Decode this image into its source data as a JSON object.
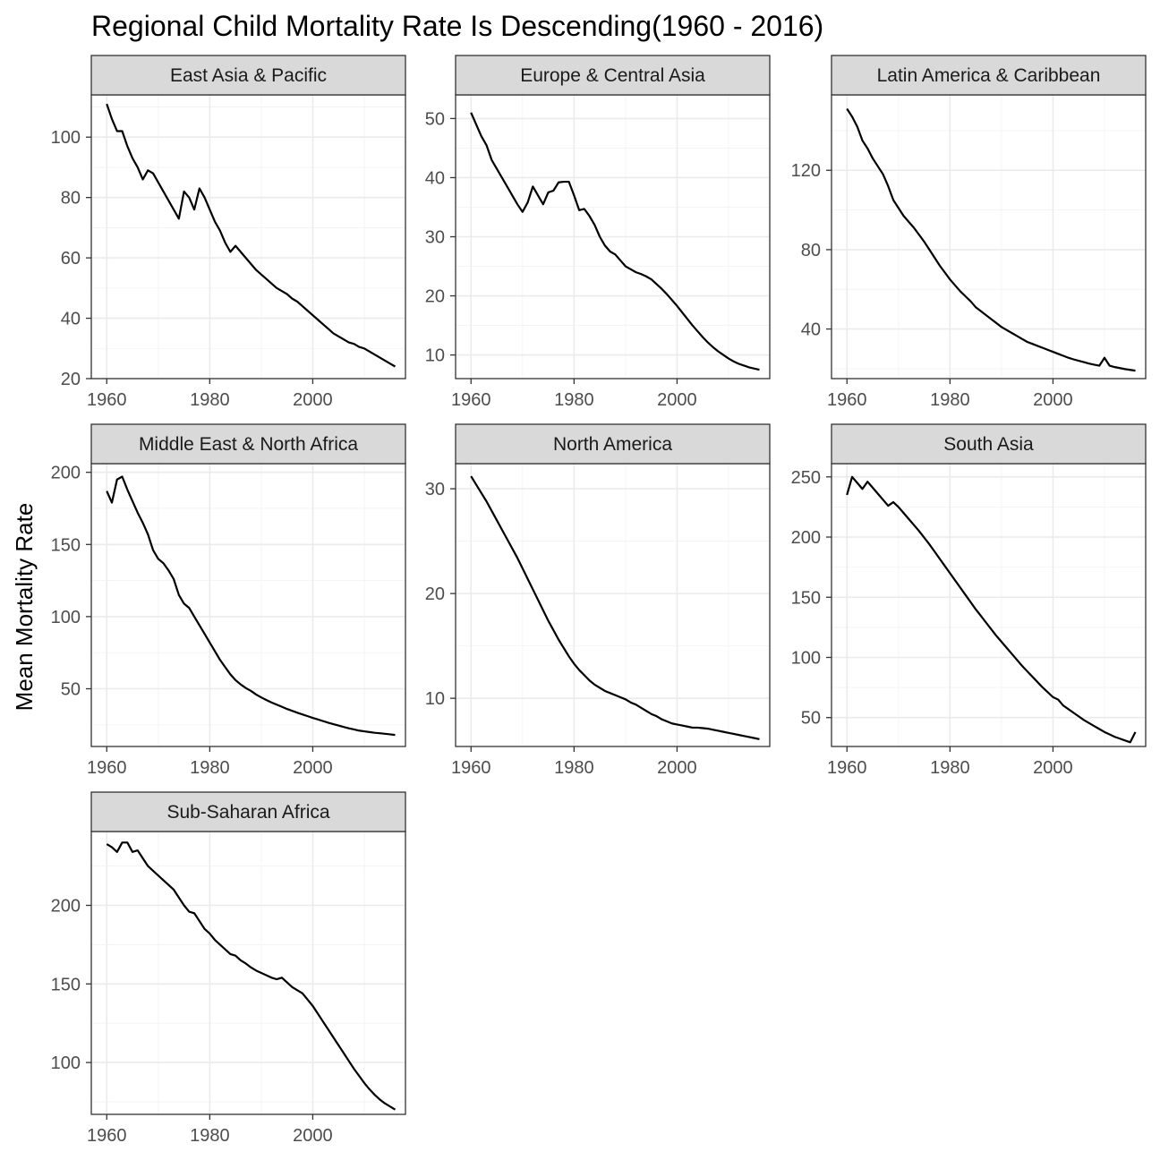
{
  "chart_data": {
    "type": "line",
    "title": "Regional Child Mortality Rate Is Descending(1960 - 2016)",
    "ylabel": "Mean Mortality Rate",
    "xlabel": "",
    "grid": true,
    "facets": [
      {
        "name": "East Asia & Pacific",
        "xlim": [
          1957,
          2018
        ],
        "ylim": [
          20,
          114
        ],
        "xticks": [
          1960,
          1980,
          2000
        ],
        "yticks": [
          20,
          40,
          60,
          80,
          100
        ],
        "x": [
          1960,
          1961,
          1962,
          1963,
          1964,
          1965,
          1966,
          1967,
          1968,
          1969,
          1970,
          1971,
          1972,
          1973,
          1974,
          1975,
          1976,
          1977,
          1978,
          1979,
          1980,
          1981,
          1982,
          1983,
          1984,
          1985,
          1986,
          1987,
          1988,
          1989,
          1990,
          1991,
          1992,
          1993,
          1994,
          1995,
          1996,
          1997,
          1998,
          1999,
          2000,
          2001,
          2002,
          2003,
          2004,
          2005,
          2006,
          2007,
          2008,
          2009,
          2010,
          2011,
          2012,
          2013,
          2014,
          2015,
          2016
        ],
        "y": [
          111,
          106,
          102,
          102,
          97,
          93,
          90,
          86,
          89,
          88,
          85,
          82,
          79,
          76,
          73,
          82,
          80,
          76,
          83,
          80,
          76,
          72,
          69,
          65,
          62,
          64,
          62,
          60,
          58,
          56,
          54.5,
          53,
          51.5,
          50,
          49,
          48,
          46.5,
          45.5,
          44,
          42.5,
          41,
          39.5,
          38,
          36.5,
          35,
          34,
          33,
          32,
          31.5,
          30.5,
          30,
          29,
          28,
          27,
          26,
          25,
          24
        ]
      },
      {
        "name": "Europe & Central Asia",
        "xlim": [
          1957,
          2018
        ],
        "ylim": [
          6,
          54
        ],
        "xticks": [
          1960,
          1980,
          2000
        ],
        "yticks": [
          10,
          20,
          30,
          40,
          50
        ],
        "x": [
          1960,
          1961,
          1962,
          1963,
          1964,
          1965,
          1966,
          1967,
          1968,
          1969,
          1970,
          1971,
          1972,
          1973,
          1974,
          1975,
          1976,
          1977,
          1978,
          1979,
          1980,
          1981,
          1982,
          1983,
          1984,
          1985,
          1986,
          1987,
          1988,
          1989,
          1990,
          1991,
          1992,
          1993,
          1994,
          1995,
          1996,
          1997,
          1998,
          1999,
          2000,
          2001,
          2002,
          2003,
          2004,
          2005,
          2006,
          2007,
          2008,
          2009,
          2010,
          2011,
          2012,
          2013,
          2014,
          2015,
          2016
        ],
        "y": [
          51,
          49,
          47,
          45.5,
          43,
          41.5,
          40,
          38.5,
          37,
          35.5,
          34.2,
          35.8,
          38.5,
          37,
          35.5,
          37.5,
          37.8,
          39.2,
          39.3,
          39.3,
          37,
          34.5,
          34.7,
          33.5,
          32,
          30,
          28.5,
          27.5,
          27,
          26,
          25,
          24.5,
          24,
          23.7,
          23.3,
          22.8,
          22,
          21.2,
          20.3,
          19.3,
          18.3,
          17.2,
          16.1,
          15,
          14,
          13,
          12.1,
          11.3,
          10.6,
          10,
          9.4,
          8.9,
          8.5,
          8.2,
          7.9,
          7.7,
          7.5
        ]
      },
      {
        "name": "Latin America & Caribbean",
        "xlim": [
          1957,
          2018
        ],
        "ylim": [
          15,
          158
        ],
        "xticks": [
          1960,
          1980,
          2000
        ],
        "yticks": [
          40,
          80,
          120
        ],
        "x": [
          1960,
          1961,
          1962,
          1963,
          1964,
          1965,
          1966,
          1967,
          1968,
          1969,
          1970,
          1971,
          1972,
          1973,
          1974,
          1975,
          1976,
          1977,
          1978,
          1979,
          1980,
          1981,
          1982,
          1983,
          1984,
          1985,
          1986,
          1987,
          1988,
          1989,
          1990,
          1991,
          1992,
          1993,
          1994,
          1995,
          1996,
          1997,
          1998,
          1999,
          2000,
          2001,
          2002,
          2003,
          2004,
          2005,
          2006,
          2007,
          2008,
          2009,
          2010,
          2011,
          2012,
          2013,
          2014,
          2015,
          2016
        ],
        "y": [
          151,
          147,
          142,
          135,
          131,
          126,
          122,
          118,
          112,
          105,
          101,
          97,
          94,
          91,
          87.5,
          84,
          80,
          76,
          72,
          68.5,
          65,
          62,
          59,
          56.5,
          54,
          51,
          49,
          47,
          45,
          43,
          41,
          39.5,
          38,
          36.5,
          35,
          33.5,
          32.5,
          31.5,
          30.5,
          29.5,
          28.5,
          27.5,
          26.5,
          25.5,
          24.7,
          24,
          23.3,
          22.6,
          22,
          21.5,
          25.5,
          21.5,
          20.8,
          20.3,
          19.8,
          19.4,
          19
        ]
      },
      {
        "name": "Middle East & North Africa",
        "xlim": [
          1957,
          2018
        ],
        "ylim": [
          10,
          206
        ],
        "xticks": [
          1960,
          1980,
          2000
        ],
        "yticks": [
          50,
          100,
          150,
          200
        ],
        "x": [
          1960,
          1961,
          1962,
          1963,
          1964,
          1965,
          1966,
          1967,
          1968,
          1969,
          1970,
          1971,
          1972,
          1973,
          1974,
          1975,
          1976,
          1977,
          1978,
          1979,
          1980,
          1981,
          1982,
          1983,
          1984,
          1985,
          1986,
          1987,
          1988,
          1989,
          1990,
          1991,
          1992,
          1993,
          1994,
          1995,
          1996,
          1997,
          1998,
          1999,
          2000,
          2001,
          2002,
          2003,
          2004,
          2005,
          2006,
          2007,
          2008,
          2009,
          2010,
          2011,
          2012,
          2013,
          2014,
          2015,
          2016
        ],
        "y": [
          187,
          179,
          195,
          197,
          188,
          180,
          172,
          165,
          157,
          146,
          140,
          137,
          132,
          126,
          115,
          109,
          106,
          100,
          94,
          88,
          82,
          76,
          70,
          65,
          60,
          56,
          53,
          50.5,
          48.5,
          46,
          44,
          42.2,
          40.5,
          39,
          37.5,
          36,
          34.7,
          33.4,
          32.2,
          31,
          29.8,
          28.7,
          27.6,
          26.5,
          25.5,
          24.5,
          23.5,
          22.6,
          21.8,
          21,
          20.5,
          20,
          19.5,
          19.2,
          18.8,
          18.4,
          18
        ]
      },
      {
        "name": "North America",
        "xlim": [
          1957,
          2018
        ],
        "ylim": [
          5.4,
          32.4
        ],
        "xticks": [
          1960,
          1980,
          2000
        ],
        "yticks": [
          10,
          20,
          30
        ],
        "x": [
          1960,
          1961,
          1962,
          1963,
          1964,
          1965,
          1966,
          1967,
          1968,
          1969,
          1970,
          1971,
          1972,
          1973,
          1974,
          1975,
          1976,
          1977,
          1978,
          1979,
          1980,
          1981,
          1982,
          1983,
          1984,
          1985,
          1986,
          1987,
          1988,
          1989,
          1990,
          1991,
          1992,
          1993,
          1994,
          1995,
          1996,
          1997,
          1998,
          1999,
          2000,
          2001,
          2002,
          2003,
          2004,
          2005,
          2006,
          2007,
          2008,
          2009,
          2010,
          2011,
          2012,
          2013,
          2014,
          2015,
          2016
        ],
        "y": [
          31.2,
          30.4,
          29.6,
          28.8,
          27.9,
          27,
          26.1,
          25.2,
          24.3,
          23.4,
          22.4,
          21.4,
          20.4,
          19.4,
          18.4,
          17.4,
          16.5,
          15.6,
          14.8,
          14,
          13.3,
          12.7,
          12.2,
          11.7,
          11.3,
          11,
          10.7,
          10.5,
          10.3,
          10.1,
          9.9,
          9.6,
          9.4,
          9.1,
          8.8,
          8.5,
          8.3,
          8,
          7.8,
          7.6,
          7.5,
          7.4,
          7.3,
          7.2,
          7.2,
          7.15,
          7.1,
          7,
          6.9,
          6.8,
          6.7,
          6.6,
          6.5,
          6.4,
          6.3,
          6.2,
          6.1
        ]
      },
      {
        "name": "South Asia",
        "xlim": [
          1957,
          2018
        ],
        "ylim": [
          26,
          261
        ],
        "xticks": [
          1960,
          1980,
          2000
        ],
        "yticks": [
          50,
          100,
          150,
          200,
          250
        ],
        "x": [
          1960,
          1961,
          1962,
          1963,
          1964,
          1965,
          1966,
          1967,
          1968,
          1969,
          1970,
          1971,
          1972,
          1973,
          1974,
          1975,
          1976,
          1977,
          1978,
          1979,
          1980,
          1981,
          1982,
          1983,
          1984,
          1985,
          1986,
          1987,
          1988,
          1989,
          1990,
          1991,
          1992,
          1993,
          1994,
          1995,
          1996,
          1997,
          1998,
          1999,
          2000,
          2001,
          2002,
          2003,
          2004,
          2005,
          2006,
          2007,
          2008,
          2009,
          2010,
          2011,
          2012,
          2013,
          2014,
          2015,
          2016
        ],
        "y": [
          235,
          250,
          245,
          240,
          246,
          241,
          236,
          231,
          226,
          229,
          225,
          220,
          215,
          210,
          205,
          199.5,
          194,
          188,
          182,
          176,
          170,
          164,
          158,
          152,
          146,
          140,
          134.5,
          129,
          123.5,
          118,
          113,
          108,
          103,
          98,
          93,
          88.5,
          84,
          79.5,
          75,
          71,
          67,
          65,
          60,
          57,
          54,
          51,
          48,
          45.5,
          43,
          40.5,
          38,
          36,
          34,
          32.5,
          31,
          29.5,
          38
        ]
      },
      {
        "name": "Sub-Saharan Africa",
        "xlim": [
          1957,
          2018
        ],
        "ylim": [
          67,
          247
        ],
        "xticks": [
          1960,
          1980,
          2000
        ],
        "yticks": [
          100,
          150,
          200
        ],
        "x": [
          1960,
          1961,
          1962,
          1963,
          1964,
          1965,
          1966,
          1967,
          1968,
          1969,
          1970,
          1971,
          1972,
          1973,
          1974,
          1975,
          1976,
          1977,
          1978,
          1979,
          1980,
          1981,
          1982,
          1983,
          1984,
          1985,
          1986,
          1987,
          1988,
          1989,
          1990,
          1991,
          1992,
          1993,
          1994,
          1995,
          1996,
          1997,
          1998,
          1999,
          2000,
          2001,
          2002,
          2003,
          2004,
          2005,
          2006,
          2007,
          2008,
          2009,
          2010,
          2011,
          2012,
          2013,
          2014,
          2015,
          2016
        ],
        "y": [
          239,
          237,
          234,
          240,
          240,
          234,
          235,
          230,
          225,
          222,
          219,
          216,
          213,
          210,
          205,
          200,
          196,
          195,
          190,
          185,
          182,
          178,
          175,
          172,
          169,
          168,
          165,
          163,
          160.5,
          158.5,
          157,
          155.5,
          154,
          153,
          154,
          151,
          148,
          146,
          144,
          140,
          136,
          131,
          126,
          121,
          116,
          111,
          106,
          101,
          96,
          91.5,
          87,
          83,
          79.5,
          76.5,
          74,
          72,
          70
        ]
      }
    ]
  }
}
